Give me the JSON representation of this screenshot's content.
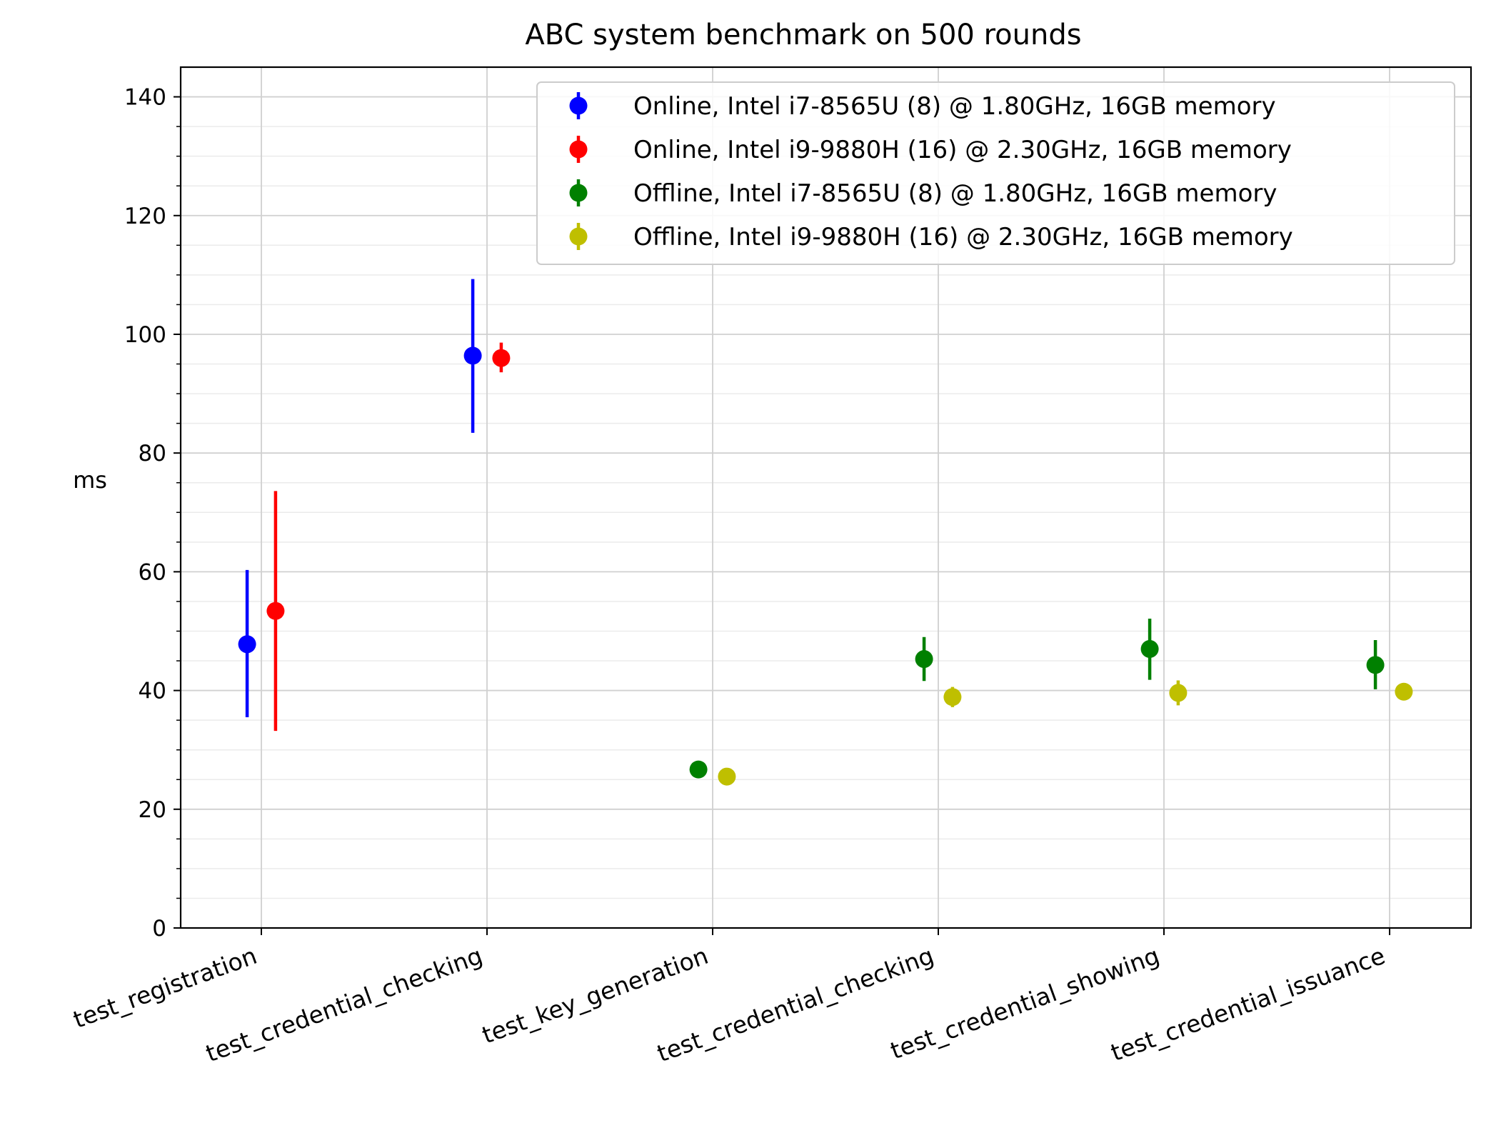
{
  "chart_data": {
    "type": "scatter",
    "title": "ABC system benchmark on 500 rounds",
    "xlabel": "",
    "ylabel": "ms",
    "categories": [
      "test_registration",
      "test_credential_checking",
      "test_key_generation",
      "test_credential_checking",
      "test_credential_showing",
      "test_credential_issuance"
    ],
    "ylim": [
      0,
      145
    ],
    "yticks": [
      0,
      20,
      40,
      60,
      80,
      100,
      120,
      140
    ],
    "grid": true,
    "legend_position": "top-right",
    "series": [
      {
        "name": "Online, Intel i7-8565U (8) @ 1.80GHz, 16GB memory",
        "color": "#0000ff",
        "offset": -0.1,
        "points": [
          {
            "category": 0,
            "value": 47.8,
            "low": 35.5,
            "high": 60.3
          },
          {
            "category": 1,
            "value": 96.4,
            "low": 83.4,
            "high": 109.3
          }
        ]
      },
      {
        "name": "Online, Intel i9-9880H (16) @ 2.30GHz, 16GB memory",
        "color": "#ff0000",
        "offset": 0.1,
        "points": [
          {
            "category": 0,
            "value": 53.4,
            "low": 33.2,
            "high": 73.6
          },
          {
            "category": 1,
            "value": 96.0,
            "low": 93.6,
            "high": 98.6
          }
        ]
      },
      {
        "name": "Offline, Intel i7-8565U (8) @ 1.80GHz, 16GB memory",
        "color": "#008000",
        "offset": -0.1,
        "points": [
          {
            "category": 2,
            "value": 26.7,
            "low": 26.2,
            "high": 27.2
          },
          {
            "category": 3,
            "value": 45.3,
            "low": 41.6,
            "high": 49.0
          },
          {
            "category": 4,
            "value": 47.0,
            "low": 41.8,
            "high": 52.1
          },
          {
            "category": 5,
            "value": 44.3,
            "low": 40.2,
            "high": 48.5
          }
        ]
      },
      {
        "name": "Offline, Intel i9-9880H (16) @ 2.30GHz, 16GB memory",
        "color": "#bfbf00",
        "offset": 0.1,
        "points": [
          {
            "category": 2,
            "value": 25.5,
            "low": 25.0,
            "high": 26.0
          },
          {
            "category": 3,
            "value": 38.9,
            "low": 37.2,
            "high": 40.6
          },
          {
            "category": 4,
            "value": 39.6,
            "low": 37.5,
            "high": 41.7
          },
          {
            "category": 5,
            "value": 39.8,
            "low": 38.6,
            "high": 41.0
          }
        ]
      }
    ]
  }
}
